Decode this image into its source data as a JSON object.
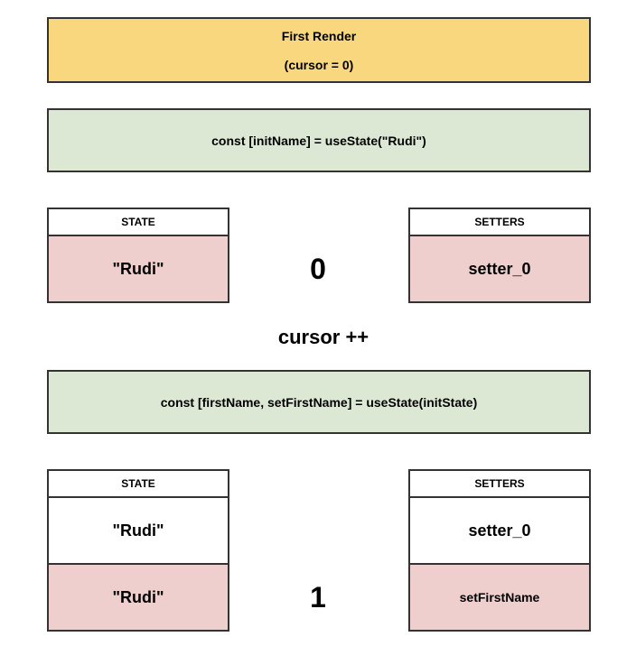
{
  "first_render": {
    "title": "First Render",
    "subtitle": "(cursor = 0)"
  },
  "step1": {
    "code": "const [initName] = useState(\"Rudi\")",
    "state_header": "STATE",
    "setters_header": "SETTERS",
    "state_values": [
      "\"Rudi\""
    ],
    "setter_values": [
      "setter_0"
    ],
    "index": "0"
  },
  "cursor_increment": "cursor ++",
  "step2": {
    "code": "const [firstName, setFirstName] = useState(initState)",
    "state_header": "STATE",
    "setters_header": "SETTERS",
    "state_values": [
      "\"Rudi\"",
      "\"Rudi\""
    ],
    "setter_values": [
      "setter_0",
      "setFirstName"
    ],
    "index": "1"
  },
  "colors": {
    "banner_fill": "#f9d77e",
    "code_fill": "#dde8d4",
    "active_cell_fill": "#efcece",
    "border": "#333333",
    "plain_fill": "#ffffff"
  }
}
